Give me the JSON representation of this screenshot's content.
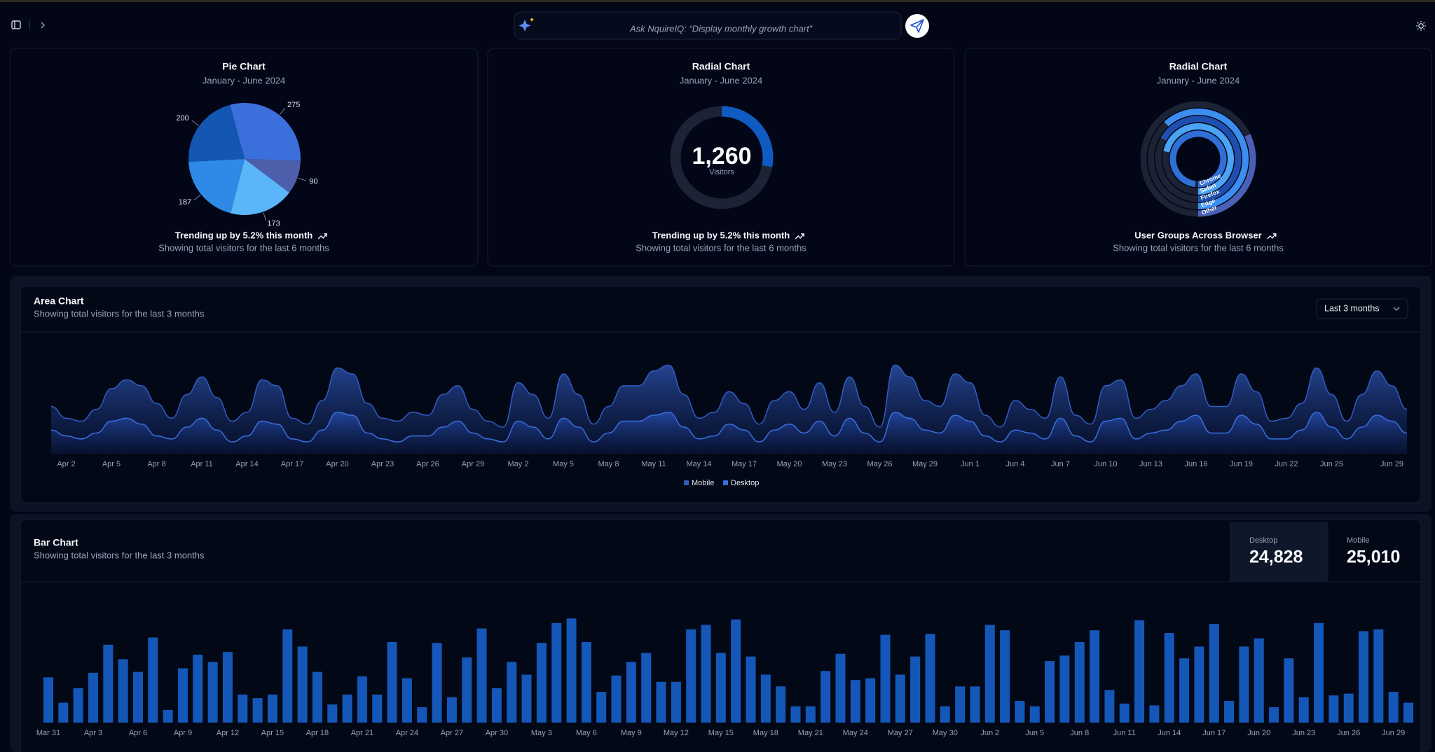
{
  "header": {
    "search_placeholder": "Ask NquireIQ: “Display monthly growth chart”"
  },
  "chart_data": [
    {
      "type": "pie",
      "title": "Pie Chart",
      "subtitle": "January - June 2024",
      "values": [
        275,
        90,
        173,
        187,
        200
      ],
      "colors": [
        "#3b6fdc",
        "#4d5faa",
        "#5ab6f8",
        "#2e8ae6",
        "#1457b2"
      ],
      "footer": "Trending up by 5.2% this month",
      "caption": "Showing total visitors for the last 6 months"
    },
    {
      "type": "radial",
      "title": "Radial Chart",
      "subtitle": "January - June 2024",
      "values": [
        1260
      ],
      "value_labels": [
        "1,260"
      ],
      "value_name": "Visitors",
      "color": "#0f5bc1",
      "rlim": [
        0,
        4500
      ],
      "footer": "Trending up by 5.2% this month",
      "caption": "Showing total visitors for the last 6 months"
    },
    {
      "type": "radial_bar",
      "title": "Radial Chart",
      "subtitle": "January - June 2024",
      "categories": [
        "Chrome",
        "Safari",
        "Firefox",
        "Edge",
        "Other"
      ],
      "values": [
        275,
        200,
        187,
        173,
        90
      ],
      "colors": [
        "#2f6fd6",
        "#4aa3f5",
        "#1e4fb0",
        "#3b8ef0",
        "#4a5fb5"
      ],
      "rlim": [
        0,
        280
      ],
      "footer": "User Groups Across Browser",
      "caption": "Showing total visitors for the last 6 months"
    },
    {
      "type": "area",
      "title": "Area Chart",
      "subtitle": "Showing total visitors for the last 3 months",
      "range_selector": "Last 3 months",
      "categories": [
        null,
        "Apr 2",
        null,
        null,
        "Apr 5",
        null,
        null,
        "Apr 8",
        null,
        null,
        "Apr 11",
        null,
        null,
        "Apr 14",
        null,
        null,
        "Apr 17",
        null,
        null,
        "Apr 20",
        null,
        null,
        "Apr 23",
        null,
        null,
        "Apr 26",
        null,
        null,
        "Apr 29",
        null,
        null,
        "May 2",
        null,
        null,
        "May 5",
        null,
        null,
        "May 8",
        null,
        null,
        "May 11",
        null,
        null,
        "May 14",
        null,
        null,
        "May 17",
        null,
        null,
        "May 20",
        null,
        null,
        "May 23",
        null,
        null,
        "May 26",
        null,
        null,
        "May 29",
        null,
        null,
        "Jun 1",
        null,
        null,
        "Jun 4",
        null,
        null,
        "Jun 7",
        null,
        null,
        "Jun 10",
        null,
        null,
        "Jun 13",
        null,
        null,
        "Jun 16",
        null,
        null,
        "Jun 19",
        null,
        null,
        "Jun 22",
        null,
        null,
        "Jun 25",
        null,
        null,
        null,
        "Jun 29",
        null
      ],
      "series": [
        {
          "name": "Mobile",
          "color": "#2f5ec4",
          "values": [
            160,
            120,
            110,
            150,
            220,
            250,
            230,
            170,
            120,
            200,
            260,
            190,
            110,
            140,
            250,
            230,
            120,
            100,
            180,
            290,
            270,
            170,
            120,
            110,
            140,
            130,
            200,
            230,
            150,
            110,
            90,
            240,
            200,
            120,
            270,
            200,
            100,
            160,
            230,
            230,
            280,
            300,
            200,
            120,
            140,
            210,
            170,
            100,
            180,
            210,
            150,
            240,
            140,
            260,
            160,
            90,
            300,
            260,
            180,
            160,
            270,
            240,
            130,
            90,
            180,
            150,
            120,
            260,
            130,
            100,
            230,
            250,
            120,
            150,
            180,
            230,
            270,
            160,
            160,
            270,
            210,
            110,
            120,
            170,
            290,
            200,
            110,
            200,
            280,
            230,
            150
          ]
        },
        {
          "name": "Desktop",
          "color": "#3a6fe0",
          "values": [
            80,
            60,
            50,
            70,
            110,
            120,
            100,
            60,
            50,
            90,
            120,
            80,
            40,
            60,
            110,
            100,
            50,
            40,
            80,
            140,
            130,
            70,
            50,
            40,
            60,
            60,
            90,
            110,
            70,
            50,
            40,
            110,
            90,
            50,
            120,
            90,
            40,
            70,
            110,
            110,
            130,
            140,
            90,
            50,
            60,
            100,
            80,
            40,
            80,
            100,
            70,
            110,
            60,
            120,
            70,
            40,
            140,
            120,
            80,
            70,
            130,
            110,
            60,
            40,
            80,
            70,
            50,
            120,
            60,
            40,
            110,
            120,
            50,
            70,
            80,
            110,
            130,
            70,
            70,
            130,
            100,
            50,
            50,
            80,
            140,
            90,
            50,
            90,
            130,
            110,
            70
          ]
        }
      ],
      "ylim": [
        0,
        360
      ]
    },
    {
      "type": "bar",
      "title": "Bar Chart",
      "subtitle": "Showing total visitors for the last 3 months",
      "stats": [
        {
          "name": "Desktop",
          "value": 24828,
          "label": "24,828"
        },
        {
          "name": "Mobile",
          "value": 25010,
          "label": "25,010"
        }
      ],
      "categories": [
        "Mar 31",
        null,
        null,
        "Apr 3",
        null,
        null,
        "Apr 6",
        null,
        null,
        "Apr 9",
        null,
        null,
        "Apr 12",
        null,
        null,
        "Apr 15",
        null,
        null,
        "Apr 18",
        null,
        null,
        "Apr 21",
        null,
        null,
        "Apr 24",
        null,
        null,
        "Apr 27",
        null,
        null,
        "Apr 30",
        null,
        null,
        "May 3",
        null,
        null,
        "May 6",
        null,
        null,
        "May 9",
        null,
        null,
        "May 12",
        null,
        null,
        "May 15",
        null,
        null,
        "May 18",
        null,
        null,
        "May 21",
        null,
        null,
        "May 24",
        null,
        null,
        "May 27",
        null,
        null,
        "May 30",
        null,
        null,
        "Jun 2",
        null,
        null,
        "Jun 5",
        null,
        null,
        "Jun 8",
        null,
        null,
        "Jun 11",
        null,
        null,
        "Jun 14",
        null,
        null,
        "Jun 17",
        null,
        null,
        "Jun 20",
        null,
        null,
        "Jun 23",
        null,
        null,
        "Jun 26",
        null,
        null,
        "Jun 29",
        null
      ],
      "values": [
        50,
        22,
        38,
        55,
        86,
        70,
        56,
        94,
        14,
        60,
        75,
        67,
        78,
        31,
        27,
        31,
        103,
        84,
        56,
        20,
        31,
        51,
        31,
        89,
        49,
        17,
        88,
        28,
        72,
        104,
        38,
        67,
        53,
        88,
        110,
        115,
        89,
        34,
        52,
        67,
        77,
        45,
        45,
        103,
        108,
        77,
        114,
        73,
        53,
        40,
        18,
        18,
        57,
        76,
        47,
        49,
        97,
        53,
        73,
        98,
        18,
        40,
        40,
        108,
        102,
        24,
        18,
        68,
        74,
        89,
        102,
        36,
        21,
        113,
        19,
        99,
        71,
        84,
        109,
        24,
        84,
        93,
        17,
        71,
        28,
        110,
        30,
        32,
        101,
        103,
        34,
        22
      ],
      "color": "#1457b8",
      "ylim": [
        0,
        140
      ]
    }
  ]
}
